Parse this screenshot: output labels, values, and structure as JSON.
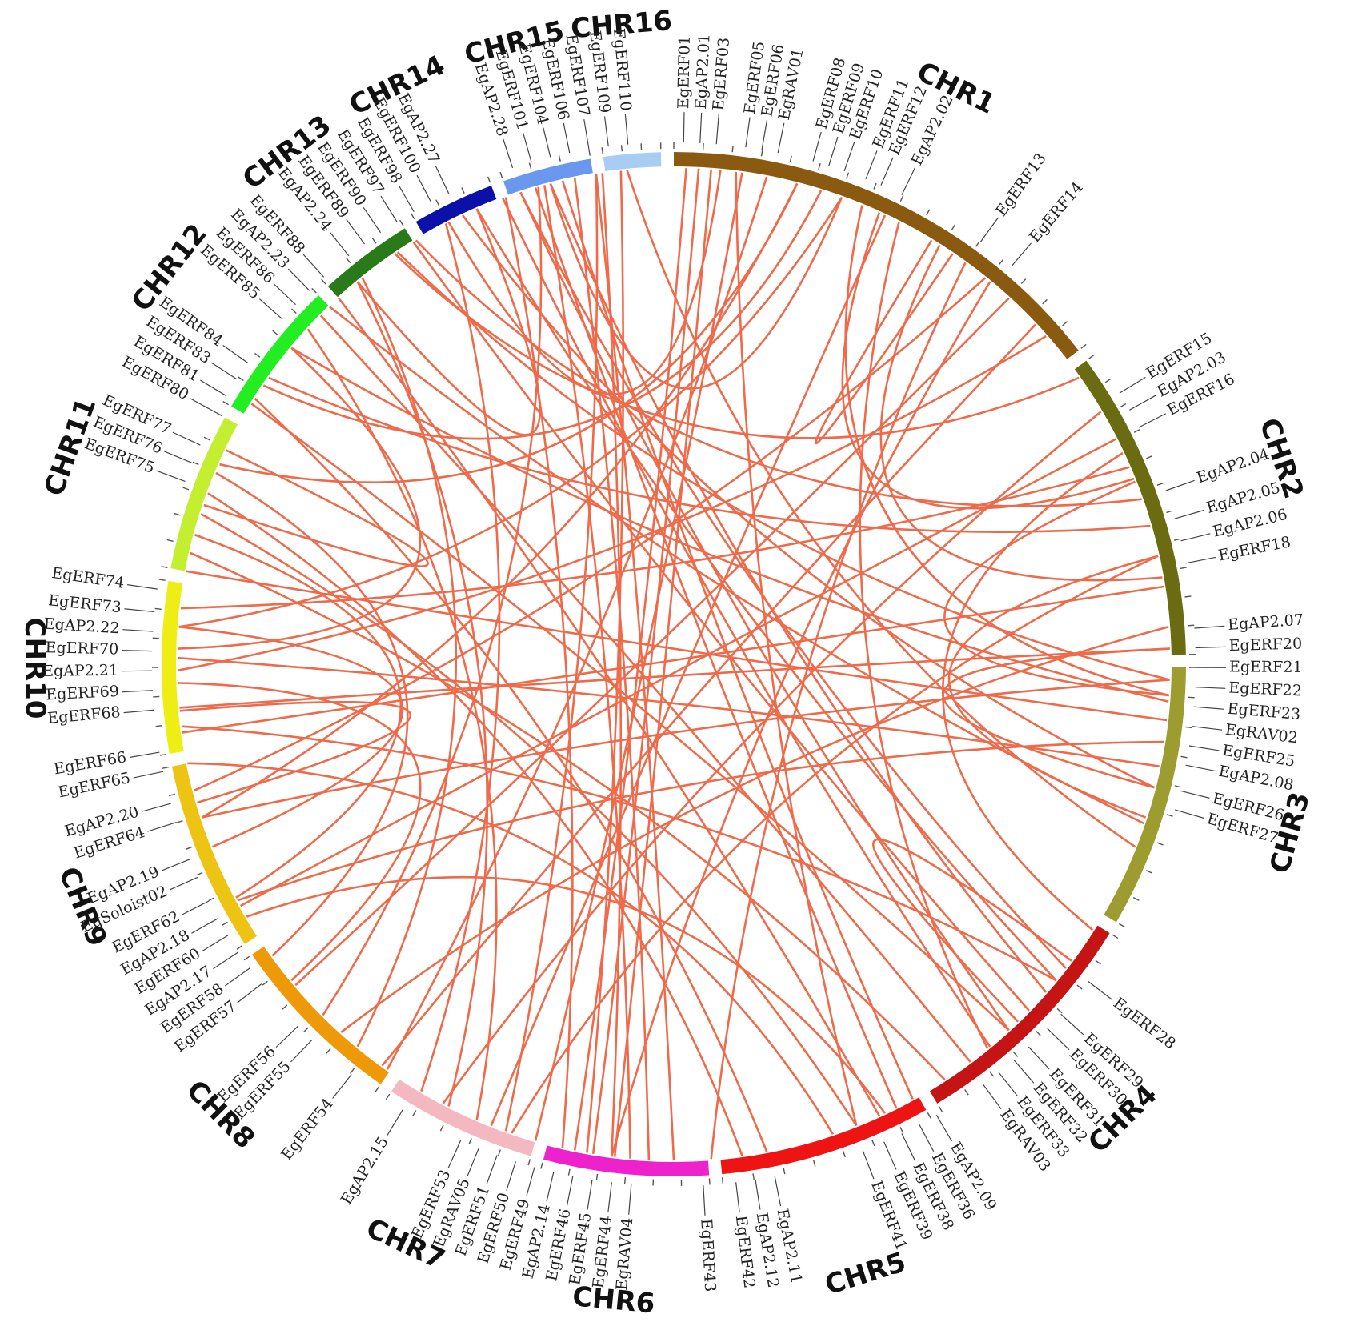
{
  "colors": {
    "link": "#ee6a4a",
    "background": "#ffffff"
  },
  "chromosomes": [
    {
      "name": "CHR1",
      "start": 0.0,
      "end": 0.145,
      "color": "#8a5a10"
    },
    {
      "name": "CHR2",
      "start": 0.149,
      "end": 0.247,
      "color": "#6b6b12"
    },
    {
      "name": "CHR3",
      "start": 0.251,
      "end": 0.334,
      "color": "#9c9c30"
    },
    {
      "name": "CHR4",
      "start": 0.338,
      "end": 0.414,
      "color": "#c41414"
    },
    {
      "name": "CHR5",
      "start": 0.418,
      "end": 0.485,
      "color": "#ee1414"
    },
    {
      "name": "CHR6",
      "start": 0.489,
      "end": 0.541,
      "color": "#ee22cc"
    },
    {
      "name": "CHR7",
      "start": 0.545,
      "end": 0.593,
      "color": "#f4b8c0"
    },
    {
      "name": "CHR8",
      "start": 0.597,
      "end": 0.654,
      "color": "#ee9a08"
    },
    {
      "name": "CHR9",
      "start": 0.658,
      "end": 0.718,
      "color": "#eec414"
    },
    {
      "name": "CHR10",
      "start": 0.722,
      "end": 0.776,
      "color": "#eeee14"
    },
    {
      "name": "CHR11",
      "start": 0.78,
      "end": 0.83,
      "color": "#c4ee30"
    },
    {
      "name": "CHR12",
      "start": 0.834,
      "end": 0.878,
      "color": "#22ee22"
    },
    {
      "name": "CHR13",
      "start": 0.882,
      "end": 0.912,
      "color": "#2a7a1a"
    },
    {
      "name": "CHR14",
      "start": 0.916,
      "end": 0.942,
      "color": "#0a10a8"
    },
    {
      "name": "CHR15",
      "start": 0.946,
      "end": 0.974,
      "color": "#6a98ee"
    },
    {
      "name": "CHR16",
      "start": 0.978,
      "end": 0.996,
      "color": "#a8ccf4"
    }
  ],
  "genes": [
    {
      "name": "EgERF01",
      "pos": 0.003
    },
    {
      "name": "EgAP2.01",
      "pos": 0.008
    },
    {
      "name": "EgERF03",
      "pos": 0.013
    },
    {
      "name": "EgERF05",
      "pos": 0.022
    },
    {
      "name": "EgERF06",
      "pos": 0.027
    },
    {
      "name": "EgRAV01",
      "pos": 0.032
    },
    {
      "name": "EgERF08",
      "pos": 0.043
    },
    {
      "name": "EgERF09",
      "pos": 0.048
    },
    {
      "name": "EgERF10",
      "pos": 0.053
    },
    {
      "name": "EgERF11",
      "pos": 0.06
    },
    {
      "name": "EgERF12",
      "pos": 0.065
    },
    {
      "name": "EgAP2.02",
      "pos": 0.072
    },
    {
      "name": "EgERF13",
      "pos": 0.1
    },
    {
      "name": "EgERF14",
      "pos": 0.112
    },
    {
      "name": "EgERF15",
      "pos": 0.163
    },
    {
      "name": "EgAP2.03",
      "pos": 0.169
    },
    {
      "name": "EgERF16",
      "pos": 0.175
    },
    {
      "name": "EgAP2.04",
      "pos": 0.196
    },
    {
      "name": "EgAP2.05",
      "pos": 0.205
    },
    {
      "name": "EgAP2.06",
      "pos": 0.212
    },
    {
      "name": "EgERF18",
      "pos": 0.219
    },
    {
      "name": "EgAP2.07",
      "pos": 0.239
    },
    {
      "name": "EgERF20",
      "pos": 0.245
    },
    {
      "name": "EgERF21",
      "pos": 0.251
    },
    {
      "name": "EgERF22",
      "pos": 0.257
    },
    {
      "name": "EgERF23",
      "pos": 0.263
    },
    {
      "name": "EgRAV02",
      "pos": 0.269
    },
    {
      "name": "EgERF25",
      "pos": 0.275
    },
    {
      "name": "EgAP2.08",
      "pos": 0.281
    },
    {
      "name": "EgERF26",
      "pos": 0.289
    },
    {
      "name": "EgERF27",
      "pos": 0.295
    },
    {
      "name": "EgERF28",
      "pos": 0.354
    },
    {
      "name": "EgERF29",
      "pos": 0.367
    },
    {
      "name": "EgERF30",
      "pos": 0.373
    },
    {
      "name": "EgERF31",
      "pos": 0.381
    },
    {
      "name": "EgERF32",
      "pos": 0.387
    },
    {
      "name": "EgERF33",
      "pos": 0.393
    },
    {
      "name": "EgRAV03",
      "pos": 0.399
    },
    {
      "name": "EgAP2.09",
      "pos": 0.416
    },
    {
      "name": "EgERF36",
      "pos": 0.422
    },
    {
      "name": "EgERF38",
      "pos": 0.428
    },
    {
      "name": "EgERF39",
      "pos": 0.434
    },
    {
      "name": "EgERF41",
      "pos": 0.441
    },
    {
      "name": "EgAP2.11",
      "pos": 0.469
    },
    {
      "name": "EgAP2.12",
      "pos": 0.475
    },
    {
      "name": "EgERF42",
      "pos": 0.481
    },
    {
      "name": "EgERF43",
      "pos": 0.491
    },
    {
      "name": "EgRAV04",
      "pos": 0.513
    },
    {
      "name": "EgERF44",
      "pos": 0.519
    },
    {
      "name": "EgERF45",
      "pos": 0.525
    },
    {
      "name": "EgERF46",
      "pos": 0.531
    },
    {
      "name": "EgAP2.14",
      "pos": 0.537
    },
    {
      "name": "EgERF49",
      "pos": 0.543
    },
    {
      "name": "EgERF50",
      "pos": 0.549
    },
    {
      "name": "EgERF51",
      "pos": 0.555
    },
    {
      "name": "EgRAV05",
      "pos": 0.561
    },
    {
      "name": "EgERF53",
      "pos": 0.567
    },
    {
      "name": "EgAP2.15",
      "pos": 0.587
    },
    {
      "name": "EgERF54",
      "pos": 0.606
    },
    {
      "name": "EgERF55",
      "pos": 0.622
    },
    {
      "name": "EgERF56",
      "pos": 0.628
    },
    {
      "name": "EgERF57",
      "pos": 0.645
    },
    {
      "name": "EgERF58",
      "pos": 0.651
    },
    {
      "name": "EgAP2.17",
      "pos": 0.657
    },
    {
      "name": "EgERF60",
      "pos": 0.663
    },
    {
      "name": "EgAP2.18",
      "pos": 0.669
    },
    {
      "name": "EgERF62",
      "pos": 0.675
    },
    {
      "name": "EgSoloist02",
      "pos": 0.683
    },
    {
      "name": "EgAP2.19",
      "pos": 0.689
    },
    {
      "name": "EgERF64",
      "pos": 0.701
    },
    {
      "name": "EgAP2.20",
      "pos": 0.707
    },
    {
      "name": "EgERF65",
      "pos": 0.717
    },
    {
      "name": "EgERF66",
      "pos": 0.723
    },
    {
      "name": "EgERF68",
      "pos": 0.736
    },
    {
      "name": "EgERF69",
      "pos": 0.742
    },
    {
      "name": "EgAP2.21",
      "pos": 0.748
    },
    {
      "name": "EgERF70",
      "pos": 0.754
    },
    {
      "name": "EgAP2.22",
      "pos": 0.76
    },
    {
      "name": "EgERF73",
      "pos": 0.766
    },
    {
      "name": "EgERF74",
      "pos": 0.773
    },
    {
      "name": "EgERF75",
      "pos": 0.807
    },
    {
      "name": "EgERF76",
      "pos": 0.813
    },
    {
      "name": "EgERF77",
      "pos": 0.819
    },
    {
      "name": "EgERF80",
      "pos": 0.83
    },
    {
      "name": "EgERF81",
      "pos": 0.836
    },
    {
      "name": "EgERF83",
      "pos": 0.842
    },
    {
      "name": "EgERF84",
      "pos": 0.848
    },
    {
      "name": "EgERF85",
      "pos": 0.865
    },
    {
      "name": "EgERF86",
      "pos": 0.871
    },
    {
      "name": "EgAP2.23",
      "pos": 0.877
    },
    {
      "name": "EgERF88",
      "pos": 0.883
    },
    {
      "name": "EgAP2.24",
      "pos": 0.893
    },
    {
      "name": "EgERF89",
      "pos": 0.899
    },
    {
      "name": "EgERF90",
      "pos": 0.905
    },
    {
      "name": "EgERF97",
      "pos": 0.911
    },
    {
      "name": "EgERF98",
      "pos": 0.917
    },
    {
      "name": "EgERF100",
      "pos": 0.923
    },
    {
      "name": "EgAP2.27",
      "pos": 0.929
    },
    {
      "name": "EgAP2.28",
      "pos": 0.95
    },
    {
      "name": "EgERF101",
      "pos": 0.956
    },
    {
      "name": "EgERF104",
      "pos": 0.962
    },
    {
      "name": "EgERF106",
      "pos": 0.968
    },
    {
      "name": "EgERF107",
      "pos": 0.974
    },
    {
      "name": "EgERF109",
      "pos": 0.98
    },
    {
      "name": "EgERF110",
      "pos": 0.986
    }
  ],
  "links": [
    [
      0.004,
      0.532
    ],
    [
      0.008,
      0.526
    ],
    [
      0.012,
      0.519
    ],
    [
      0.022,
      0.545
    ],
    [
      0.03,
      0.598
    ],
    [
      0.04,
      0.7
    ],
    [
      0.048,
      0.845
    ],
    [
      0.055,
      0.762
    ],
    [
      0.062,
      0.26
    ],
    [
      0.068,
      0.189
    ],
    [
      0.075,
      0.391
    ],
    [
      0.09,
      0.222
    ],
    [
      0.1,
      0.488
    ],
    [
      0.108,
      0.709
    ],
    [
      0.118,
      0.638
    ],
    [
      0.135,
      0.748
    ],
    [
      0.152,
      0.905
    ],
    [
      0.165,
      0.577
    ],
    [
      0.175,
      0.669
    ],
    [
      0.185,
      0.768
    ],
    [
      0.196,
      0.913
    ],
    [
      0.205,
      0.848
    ],
    [
      0.215,
      0.553
    ],
    [
      0.225,
      0.728
    ],
    [
      0.238,
      0.617
    ],
    [
      0.245,
      0.736
    ],
    [
      0.255,
      0.906
    ],
    [
      0.262,
      0.86
    ],
    [
      0.268,
      0.78
    ],
    [
      0.275,
      0.671
    ],
    [
      0.283,
      0.752
    ],
    [
      0.29,
      0.93
    ],
    [
      0.302,
      0.878
    ],
    [
      0.355,
      0.95
    ],
    [
      0.365,
      0.96
    ],
    [
      0.373,
      0.912
    ],
    [
      0.382,
      0.838
    ],
    [
      0.39,
      0.944
    ],
    [
      0.398,
      0.874
    ],
    [
      0.408,
      0.786
    ],
    [
      0.42,
      0.964
    ],
    [
      0.426,
      0.955
    ],
    [
      0.432,
      0.882
    ],
    [
      0.44,
      0.799
    ],
    [
      0.448,
      0.718
    ],
    [
      0.47,
      0.84
    ],
    [
      0.478,
      0.806
    ],
    [
      0.5,
      0.975
    ],
    [
      0.508,
      0.968
    ],
    [
      0.514,
      0.958
    ],
    [
      0.52,
      0.977
    ],
    [
      0.528,
      0.983
    ],
    [
      0.536,
      0.945
    ],
    [
      0.555,
      0.975
    ],
    [
      0.565,
      0.868
    ],
    [
      0.575,
      0.89
    ],
    [
      0.585,
      0.924
    ],
    [
      0.61,
      0.892
    ],
    [
      0.625,
      0.956
    ],
    [
      0.64,
      0.744
    ],
    [
      0.65,
      0.813
    ],
    [
      0.672,
      0.792
    ],
    [
      0.69,
      0.762
    ],
    [
      0.705,
      0.735
    ],
    [
      0.755,
      0.86
    ],
    [
      0.802,
      0.821
    ],
    [
      0.816,
      0.04
    ],
    [
      0.7,
      0.255
    ],
    [
      0.73,
      0.36
    ],
    [
      0.665,
      0.43
    ],
    [
      0.6,
      0.13
    ],
    [
      0.56,
      0.07
    ],
    [
      0.52,
      0.11
    ],
    [
      0.44,
      0.02
    ],
    [
      0.34,
      0.18
    ],
    [
      0.3,
      0.215
    ],
    [
      0.352,
      0.378
    ],
    [
      0.19,
      0.26
    ],
    [
      0.245,
      0.29
    ],
    [
      0.087,
      0.095
    ],
    [
      0.89,
      0.935
    ],
    [
      0.925,
      0.015
    ],
    [
      0.96,
      0.055
    ],
    [
      0.985,
      0.31
    ],
    [
      0.95,
      0.382
    ],
    [
      0.935,
      0.36
    ]
  ]
}
